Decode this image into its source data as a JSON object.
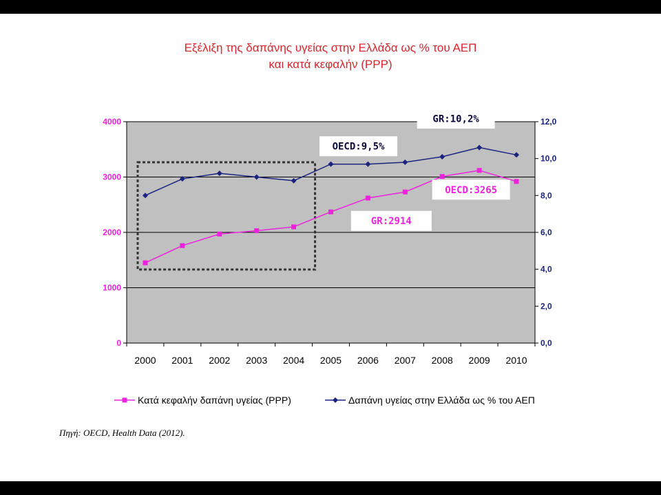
{
  "chart_data": {
    "type": "line",
    "title": "Εξέλιξη της δαπάνης υγείας στην Ελλάδα ως % του ΑΕΠ",
    "subtitle": "και κατά κεφαλήν (PPP)",
    "x": [
      "2000",
      "2001",
      "2002",
      "2003",
      "2004",
      "2005",
      "2006",
      "2007",
      "2008",
      "2009",
      "2010"
    ],
    "series": [
      {
        "name": "Κατά κεφαλήν δαπάνη υγείας (PPP)",
        "axis": "left",
        "color": "#ee22dd",
        "marker": "square",
        "values": [
          1450,
          1760,
          1970,
          2030,
          2100,
          2370,
          2620,
          2730,
          3010,
          3120,
          2920
        ]
      },
      {
        "name": "Δαπάνη υγείας στην Ελλάδα ως % του ΑΕΠ",
        "axis": "right",
        "color": "#1a237e",
        "marker": "diamond",
        "values": [
          8.0,
          8.9,
          9.2,
          9.0,
          8.8,
          9.7,
          9.7,
          9.8,
          10.1,
          10.6,
          10.2
        ]
      }
    ],
    "y_left": {
      "ylim": [
        0,
        4000
      ],
      "ticks": [
        "0",
        "1000",
        "2000",
        "3000",
        "4000"
      ],
      "tick_values": [
        0,
        1000,
        2000,
        3000,
        4000
      ],
      "color": "#ee22dd"
    },
    "y_right": {
      "ylim": [
        0,
        12
      ],
      "ticks": [
        "0,0",
        "2,0",
        "4,0",
        "6,0",
        "8,0",
        "10,0",
        "12,0"
      ],
      "tick_values": [
        0,
        2,
        4,
        6,
        8,
        10,
        12
      ],
      "color": "#1a237e"
    },
    "gridlines": [
      1000,
      2000,
      3000
    ],
    "plot_background": "#c0c0c0",
    "legend_placement": "bottom",
    "annotations": [
      {
        "text": "OECD:9,5%",
        "anchor_year": "2005",
        "anchor_series": 1
      },
      {
        "text": "GR:10,2%",
        "anchor_year": "2009",
        "anchor_series": 1
      },
      {
        "text": "OECD:3265",
        "anchor_year": "2009",
        "anchor_series": 0
      },
      {
        "text": "GR:2914",
        "anchor_year": "2007",
        "anchor_series": 0
      }
    ],
    "highlight_box": {
      "from_year": "2000",
      "to_year": "2004",
      "style": "dashed"
    }
  },
  "source": "Πηγή: OECD, Health Data (2012)."
}
